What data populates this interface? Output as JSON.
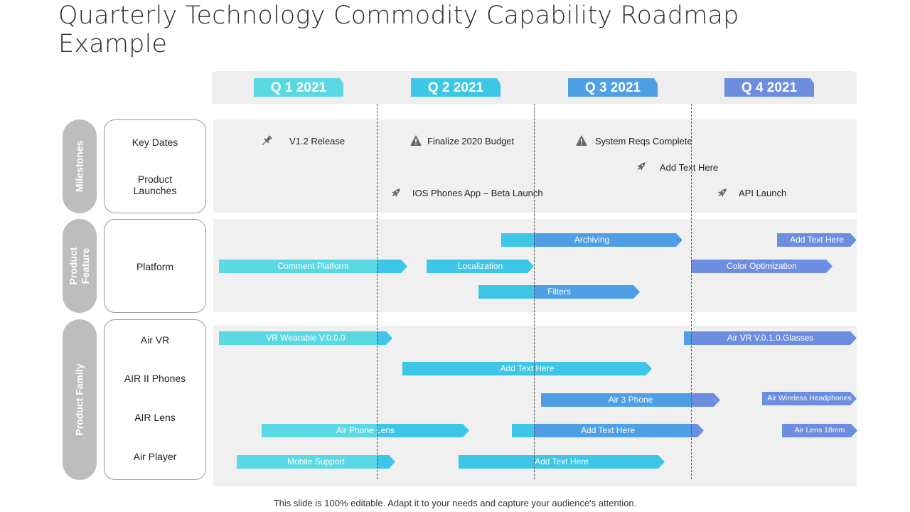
{
  "title": "Quarterly Technology Commodity Capability Roadmap Example",
  "quarters": [
    "Q 1  2021",
    "Q 2  2021",
    "Q 3  2021",
    "Q 4  2021"
  ],
  "sections": {
    "milestones": "Milestones",
    "product_feature": "Product Feature",
    "product_family": "Product Family"
  },
  "row_labels": {
    "key_dates": "Key Dates",
    "product_launches": "Product Launches",
    "platform": "Platform",
    "air_vr": "Air VR",
    "air_ii_phones": "AIR II Phones",
    "air_lens": "AIR Lens",
    "air_player": "Air Player"
  },
  "milestones": {
    "v12_release": "V1.2 Release",
    "finalize_budget": "Finalize 2020 Budget",
    "system_reqs": "System Reqs Complete",
    "add_text": "Add Text Here",
    "ios_beta": "IOS Phones App – Beta Launch",
    "api_launch": "API Launch"
  },
  "bars": {
    "archiving": "Archiving",
    "add_text_platform": "Add Text Here",
    "comment_platform": "Comment Platform",
    "localization": "Localization",
    "color_optimization": "Color Optimization",
    "filters": "Filters",
    "vr_wearable": "VR Wearable V.0.0.0",
    "air_vr_glasses": "Air VR V.0.1.0.Glasses",
    "add_text_phones": "Add Text Here",
    "air3_phone": "Air 3 Phone",
    "air_wireless_headphones": "Air Wireless Headphones",
    "air_phone_lens": "Air Phone Lens",
    "add_text_lens": "Add Text Here",
    "air_lens_18mm": "Air Lens 18mm",
    "mobile_support": "Mobile Support",
    "add_text_player": "Add Text Here"
  },
  "colors": {
    "q1": "#5ad9e3",
    "q2": "#3dc6e6",
    "q3": "#4e9fe6",
    "q4": "#6d8ee0",
    "panel": "#f0f0f0",
    "pill": "#bdbdbd"
  },
  "footer": "This slide is 100% editable. Adapt it to your needs and capture your audience's attention."
}
